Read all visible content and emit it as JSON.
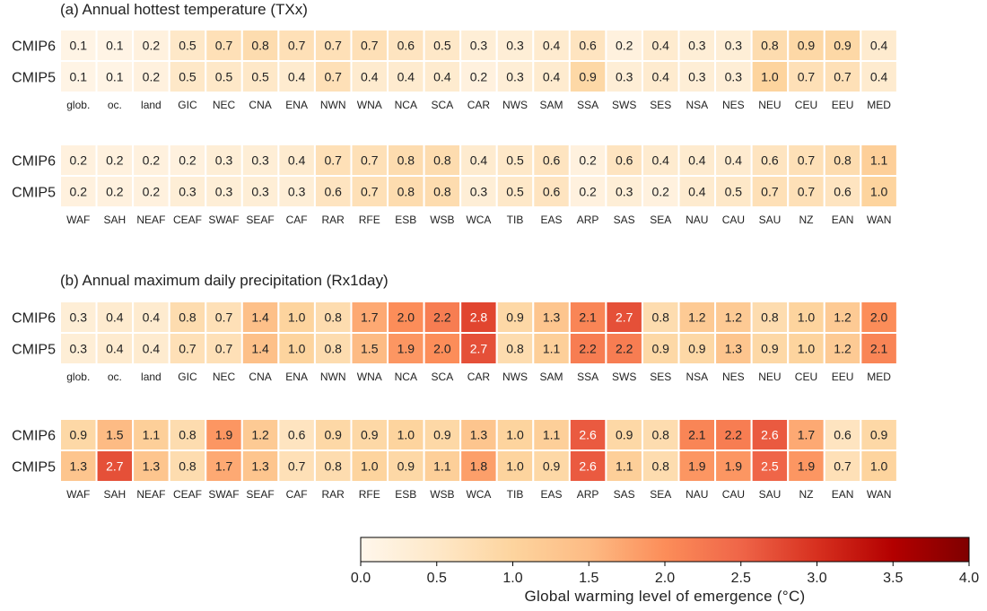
{
  "chart_data": {
    "type": "heatmap",
    "colormap": "OrRd",
    "panels": [
      {
        "title": "(a) Annual hottest temperature (TXx)",
        "blocks": [
          {
            "columns": [
              "glob.",
              "oc.",
              "land",
              "GIC",
              "NEC",
              "CNA",
              "ENA",
              "NWN",
              "WNA",
              "NCA",
              "SCA",
              "CAR",
              "NWS",
              "SAM",
              "SSA",
              "SWS",
              "SES",
              "NSA",
              "NES",
              "NEU",
              "CEU",
              "EEU",
              "MED"
            ],
            "rows": [
              {
                "label": "CMIP6",
                "values": [
                  0.1,
                  0.1,
                  0.2,
                  0.5,
                  0.7,
                  0.8,
                  0.7,
                  0.7,
                  0.7,
                  0.6,
                  0.5,
                  0.3,
                  0.3,
                  0.4,
                  0.6,
                  0.2,
                  0.4,
                  0.3,
                  0.3,
                  0.8,
                  0.9,
                  0.9,
                  0.4
                ]
              },
              {
                "label": "CMIP5",
                "values": [
                  0.1,
                  0.1,
                  0.2,
                  0.5,
                  0.5,
                  0.5,
                  0.4,
                  0.7,
                  0.4,
                  0.4,
                  0.4,
                  0.2,
                  0.3,
                  0.4,
                  0.9,
                  0.3,
                  0.4,
                  0.3,
                  0.3,
                  1.0,
                  0.7,
                  0.7,
                  0.4
                ]
              }
            ]
          },
          {
            "columns": [
              "WAF",
              "SAH",
              "NEAF",
              "CEAF",
              "SWAF",
              "SEAF",
              "CAF",
              "RAR",
              "RFE",
              "ESB",
              "WSB",
              "WCA",
              "TIB",
              "EAS",
              "ARP",
              "SAS",
              "SEA",
              "NAU",
              "CAU",
              "SAU",
              "NZ",
              "EAN",
              "WAN"
            ],
            "rows": [
              {
                "label": "CMIP6",
                "values": [
                  0.2,
                  0.2,
                  0.2,
                  0.2,
                  0.3,
                  0.3,
                  0.4,
                  0.7,
                  0.7,
                  0.8,
                  0.8,
                  0.4,
                  0.5,
                  0.6,
                  0.2,
                  0.6,
                  0.4,
                  0.4,
                  0.4,
                  0.6,
                  0.7,
                  0.8,
                  1.1
                ]
              },
              {
                "label": "CMIP5",
                "values": [
                  0.2,
                  0.2,
                  0.2,
                  0.3,
                  0.3,
                  0.3,
                  0.3,
                  0.6,
                  0.7,
                  0.8,
                  0.8,
                  0.3,
                  0.5,
                  0.6,
                  0.2,
                  0.3,
                  0.2,
                  0.4,
                  0.5,
                  0.7,
                  0.7,
                  0.6,
                  1.0
                ]
              }
            ]
          }
        ]
      },
      {
        "title": "(b) Annual maximum daily precipitation (Rx1day)",
        "blocks": [
          {
            "columns": [
              "glob.",
              "oc.",
              "land",
              "GIC",
              "NEC",
              "CNA",
              "ENA",
              "NWN",
              "WNA",
              "NCA",
              "SCA",
              "CAR",
              "NWS",
              "SAM",
              "SSA",
              "SWS",
              "SES",
              "NSA",
              "NES",
              "NEU",
              "CEU",
              "EEU",
              "MED"
            ],
            "rows": [
              {
                "label": "CMIP6",
                "values": [
                  0.3,
                  0.4,
                  0.4,
                  0.8,
                  0.7,
                  1.4,
                  1.0,
                  0.8,
                  1.7,
                  2.0,
                  2.2,
                  2.8,
                  0.9,
                  1.3,
                  2.1,
                  2.7,
                  0.8,
                  1.2,
                  1.2,
                  0.8,
                  1.0,
                  1.2,
                  2.0
                ]
              },
              {
                "label": "CMIP5",
                "values": [
                  0.3,
                  0.4,
                  0.4,
                  0.7,
                  0.7,
                  1.4,
                  1.0,
                  0.8,
                  1.5,
                  1.9,
                  2.0,
                  2.7,
                  0.8,
                  1.1,
                  2.2,
                  2.2,
                  0.9,
                  0.9,
                  1.3,
                  0.9,
                  1.0,
                  1.2,
                  2.1
                ]
              }
            ]
          },
          {
            "columns": [
              "WAF",
              "SAH",
              "NEAF",
              "CEAF",
              "SWAF",
              "SEAF",
              "CAF",
              "RAR",
              "RFE",
              "ESB",
              "WSB",
              "WCA",
              "TIB",
              "EAS",
              "ARP",
              "SAS",
              "SEA",
              "NAU",
              "CAU",
              "SAU",
              "NZ",
              "EAN",
              "WAN"
            ],
            "rows": [
              {
                "label": "CMIP6",
                "values": [
                  0.9,
                  1.5,
                  1.1,
                  0.8,
                  1.9,
                  1.2,
                  0.6,
                  0.9,
                  0.9,
                  1.0,
                  0.9,
                  1.3,
                  1.0,
                  1.1,
                  2.6,
                  0.9,
                  0.8,
                  2.1,
                  2.2,
                  2.6,
                  1.7,
                  0.6,
                  0.9
                ]
              },
              {
                "label": "CMIP5",
                "values": [
                  1.3,
                  2.7,
                  1.3,
                  0.8,
                  1.7,
                  1.3,
                  0.7,
                  0.8,
                  1.0,
                  0.9,
                  1.1,
                  1.8,
                  1.0,
                  0.9,
                  2.6,
                  1.1,
                  0.8,
                  1.9,
                  1.9,
                  2.5,
                  1.9,
                  0.7,
                  1.0
                ]
              }
            ]
          }
        ]
      }
    ],
    "colorbar": {
      "label": "Global warming level of emergence (°C)",
      "range": [
        0.0,
        4.0
      ],
      "ticks": [
        "0.0",
        "0.5",
        "1.0",
        "1.5",
        "2.0",
        "2.5",
        "3.0",
        "3.5",
        "4.0"
      ]
    }
  }
}
